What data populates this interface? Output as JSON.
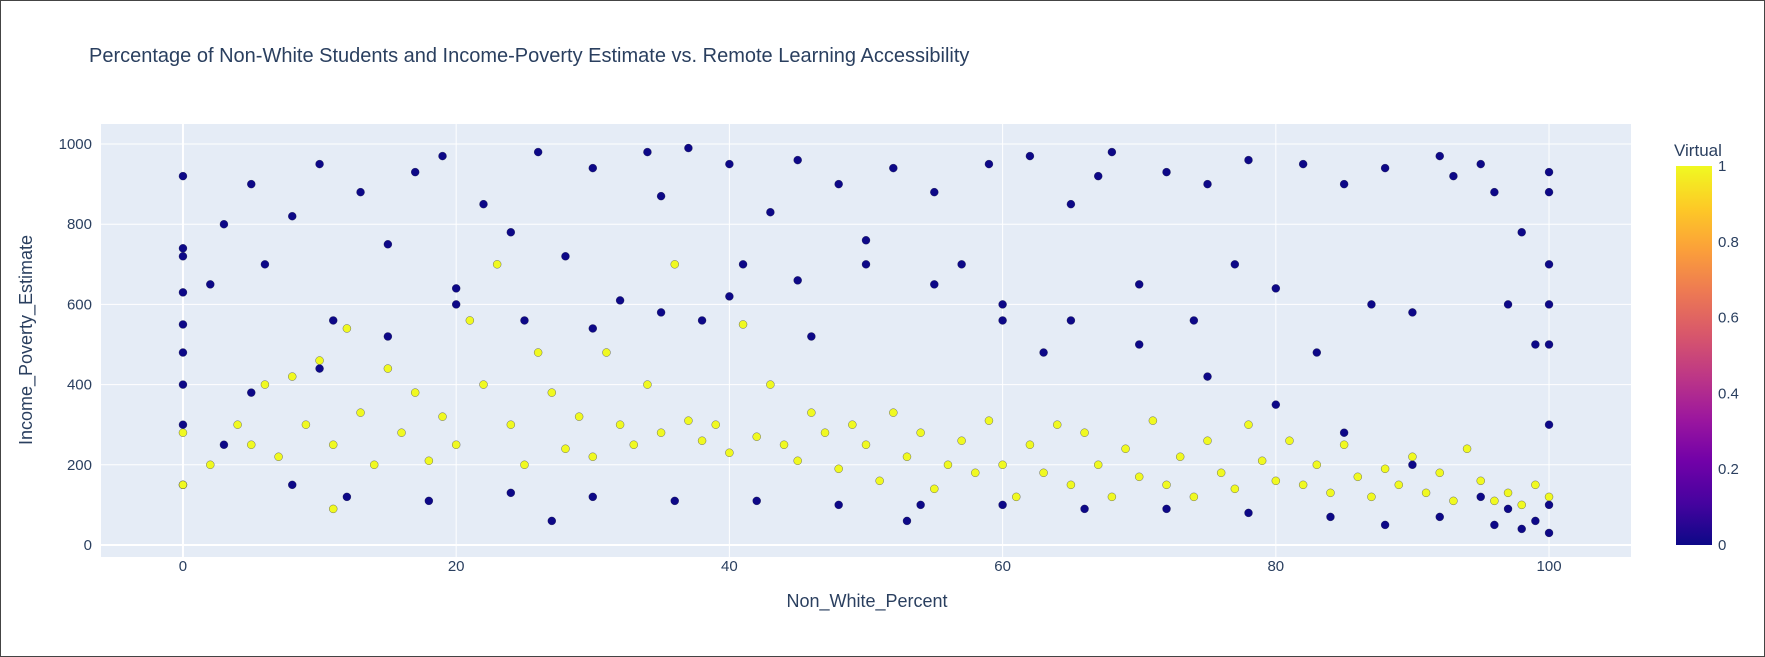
{
  "chart_data": {
    "type": "scatter",
    "title": "Percentage of Non-White Students and Income-Poverty Estimate vs. Remote Learning Accessibility",
    "xlabel": "Non_White_Percent",
    "ylabel": "Income_Poverty_Estimate",
    "xlim": [
      -6,
      106
    ],
    "ylim": [
      -30,
      1050
    ],
    "x_ticks": [
      0,
      20,
      40,
      60,
      80,
      100
    ],
    "x_tick_labels": [
      "0",
      "20",
      "40",
      "60",
      "80",
      "100"
    ],
    "y_ticks": [
      0,
      200,
      400,
      600,
      800,
      1000
    ],
    "y_tick_labels": [
      "0",
      "200",
      "400",
      "600",
      "800",
      "1000"
    ],
    "grid": true,
    "colorbar": {
      "title": "Virtual",
      "range": [
        0,
        1
      ],
      "ticks": [
        0,
        0.2,
        0.4,
        0.6,
        0.8,
        1
      ],
      "tick_labels": [
        "0",
        "0.2",
        "0.4",
        "0.6",
        "0.8",
        "1"
      ],
      "colorscale": [
        "#0d0887",
        "#46039f",
        "#7201a8",
        "#9c179e",
        "#bd3786",
        "#d8576b",
        "#ed7953",
        "#fb9f3a",
        "#fdca26",
        "#f0f921"
      ]
    },
    "point_colors": {
      "0": "#0d0887",
      "1": "#f0f921"
    },
    "series": [
      {
        "virtual": 0,
        "points": [
          [
            0,
            920
          ],
          [
            0,
            740
          ],
          [
            0,
            720
          ],
          [
            0,
            630
          ],
          [
            0,
            550
          ],
          [
            0,
            480
          ],
          [
            0,
            400
          ],
          [
            0,
            300
          ],
          [
            0,
            150
          ],
          [
            2,
            650
          ],
          [
            3,
            800
          ],
          [
            5,
            900
          ],
          [
            6,
            700
          ],
          [
            8,
            820
          ],
          [
            10,
            950
          ],
          [
            11,
            560
          ],
          [
            13,
            880
          ],
          [
            15,
            750
          ],
          [
            17,
            930
          ],
          [
            19,
            970
          ],
          [
            20,
            640
          ],
          [
            22,
            850
          ],
          [
            24,
            780
          ],
          [
            26,
            980
          ],
          [
            27,
            60
          ],
          [
            28,
            720
          ],
          [
            30,
            940
          ],
          [
            32,
            610
          ],
          [
            34,
            980
          ],
          [
            35,
            870
          ],
          [
            37,
            990
          ],
          [
            38,
            560
          ],
          [
            40,
            950
          ],
          [
            41,
            700
          ],
          [
            43,
            830
          ],
          [
            45,
            960
          ],
          [
            46,
            520
          ],
          [
            48,
            900
          ],
          [
            50,
            760
          ],
          [
            52,
            940
          ],
          [
            53,
            60
          ],
          [
            55,
            880
          ],
          [
            57,
            700
          ],
          [
            59,
            950
          ],
          [
            60,
            560
          ],
          [
            62,
            970
          ],
          [
            63,
            480
          ],
          [
            65,
            850
          ],
          [
            67,
            920
          ],
          [
            68,
            980
          ],
          [
            70,
            650
          ],
          [
            72,
            930
          ],
          [
            74,
            560
          ],
          [
            75,
            900
          ],
          [
            77,
            700
          ],
          [
            78,
            960
          ],
          [
            80,
            640
          ],
          [
            82,
            950
          ],
          [
            83,
            480
          ],
          [
            85,
            900
          ],
          [
            87,
            600
          ],
          [
            88,
            940
          ],
          [
            90,
            580
          ],
          [
            92,
            970
          ],
          [
            93,
            920
          ],
          [
            95,
            950
          ],
          [
            96,
            880
          ],
          [
            97,
            600
          ],
          [
            98,
            780
          ],
          [
            99,
            500
          ],
          [
            100,
            930
          ],
          [
            100,
            880
          ],
          [
            100,
            700
          ],
          [
            100,
            600
          ],
          [
            100,
            500
          ],
          [
            100,
            300
          ],
          [
            100,
            100
          ],
          [
            100,
            30
          ],
          [
            99,
            60
          ],
          [
            98,
            40
          ],
          [
            97,
            90
          ],
          [
            95,
            120
          ],
          [
            90,
            200
          ],
          [
            85,
            280
          ],
          [
            80,
            350
          ],
          [
            75,
            420
          ],
          [
            70,
            500
          ],
          [
            65,
            560
          ],
          [
            60,
            600
          ],
          [
            55,
            650
          ],
          [
            50,
            700
          ],
          [
            45,
            660
          ],
          [
            40,
            620
          ],
          [
            35,
            580
          ],
          [
            30,
            540
          ],
          [
            25,
            560
          ],
          [
            20,
            600
          ],
          [
            15,
            520
          ],
          [
            10,
            440
          ],
          [
            5,
            380
          ],
          [
            3,
            250
          ],
          [
            8,
            150
          ],
          [
            12,
            120
          ],
          [
            18,
            110
          ],
          [
            24,
            130
          ],
          [
            30,
            120
          ],
          [
            36,
            110
          ],
          [
            42,
            110
          ],
          [
            48,
            100
          ],
          [
            54,
            100
          ],
          [
            60,
            100
          ],
          [
            66,
            90
          ],
          [
            72,
            90
          ],
          [
            78,
            80
          ],
          [
            84,
            70
          ],
          [
            88,
            50
          ],
          [
            92,
            70
          ],
          [
            96,
            50
          ]
        ]
      },
      {
        "virtual": 1,
        "points": [
          [
            0,
            280
          ],
          [
            0,
            150
          ],
          [
            2,
            200
          ],
          [
            4,
            300
          ],
          [
            5,
            250
          ],
          [
            6,
            400
          ],
          [
            7,
            220
          ],
          [
            8,
            420
          ],
          [
            9,
            300
          ],
          [
            10,
            460
          ],
          [
            11,
            250
          ],
          [
            11,
            90
          ],
          [
            12,
            540
          ],
          [
            13,
            330
          ],
          [
            14,
            200
          ],
          [
            15,
            440
          ],
          [
            16,
            280
          ],
          [
            17,
            380
          ],
          [
            18,
            210
          ],
          [
            19,
            320
          ],
          [
            20,
            250
          ],
          [
            21,
            560
          ],
          [
            22,
            400
          ],
          [
            23,
            700
          ],
          [
            24,
            300
          ],
          [
            25,
            200
          ],
          [
            26,
            480
          ],
          [
            27,
            380
          ],
          [
            28,
            240
          ],
          [
            29,
            320
          ],
          [
            30,
            220
          ],
          [
            31,
            480
          ],
          [
            32,
            300
          ],
          [
            33,
            250
          ],
          [
            34,
            400
          ],
          [
            35,
            280
          ],
          [
            36,
            700
          ],
          [
            37,
            310
          ],
          [
            38,
            260
          ],
          [
            39,
            300
          ],
          [
            40,
            230
          ],
          [
            41,
            550
          ],
          [
            42,
            270
          ],
          [
            43,
            400
          ],
          [
            44,
            250
          ],
          [
            45,
            210
          ],
          [
            46,
            330
          ],
          [
            47,
            280
          ],
          [
            48,
            190
          ],
          [
            49,
            300
          ],
          [
            50,
            250
          ],
          [
            51,
            160
          ],
          [
            52,
            330
          ],
          [
            53,
            220
          ],
          [
            54,
            280
          ],
          [
            55,
            140
          ],
          [
            56,
            200
          ],
          [
            57,
            260
          ],
          [
            58,
            180
          ],
          [
            59,
            310
          ],
          [
            60,
            200
          ],
          [
            61,
            120
          ],
          [
            62,
            250
          ],
          [
            63,
            180
          ],
          [
            64,
            300
          ],
          [
            65,
            150
          ],
          [
            66,
            280
          ],
          [
            67,
            200
          ],
          [
            68,
            120
          ],
          [
            69,
            240
          ],
          [
            70,
            170
          ],
          [
            71,
            310
          ],
          [
            72,
            150
          ],
          [
            73,
            220
          ],
          [
            74,
            120
          ],
          [
            75,
            260
          ],
          [
            76,
            180
          ],
          [
            77,
            140
          ],
          [
            78,
            300
          ],
          [
            79,
            210
          ],
          [
            80,
            160
          ],
          [
            81,
            260
          ],
          [
            82,
            150
          ],
          [
            83,
            200
          ],
          [
            84,
            130
          ],
          [
            85,
            250
          ],
          [
            86,
            170
          ],
          [
            87,
            120
          ],
          [
            88,
            190
          ],
          [
            89,
            150
          ],
          [
            90,
            220
          ],
          [
            91,
            130
          ],
          [
            92,
            180
          ],
          [
            93,
            110
          ],
          [
            94,
            240
          ],
          [
            95,
            160
          ],
          [
            96,
            110
          ],
          [
            97,
            130
          ],
          [
            98,
            100
          ],
          [
            99,
            150
          ],
          [
            100,
            120
          ]
        ]
      }
    ]
  }
}
